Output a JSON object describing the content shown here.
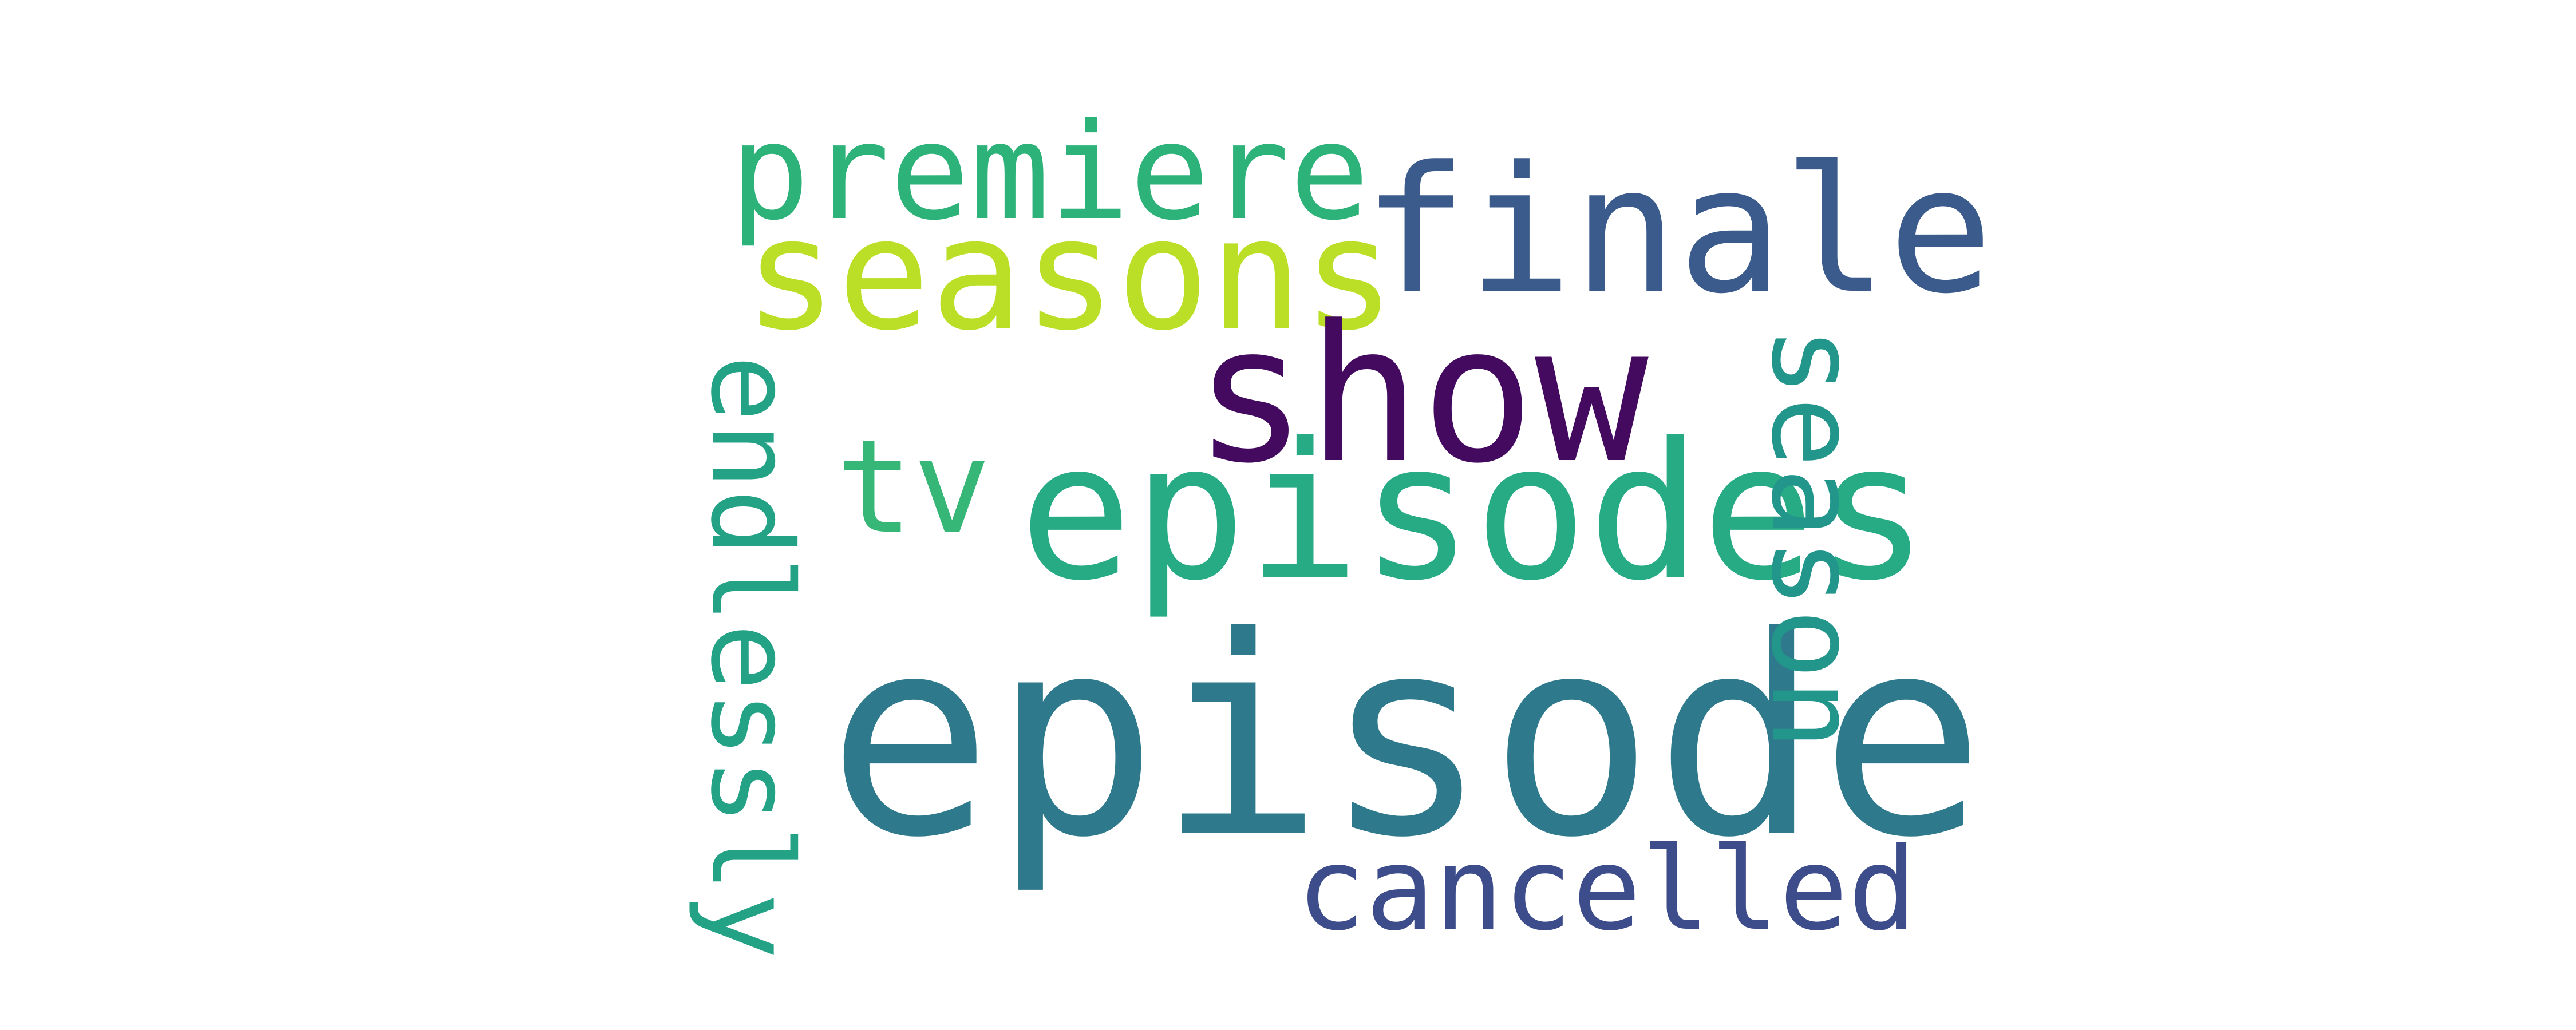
{
  "words": {
    "episode": {
      "text": "episode",
      "color": "#2e7a8c"
    },
    "episodes": {
      "text": "episodes",
      "color": "#27ab85"
    },
    "show": {
      "text": "show",
      "color": "#440a60"
    },
    "finale": {
      "text": "finale",
      "color": "#3b5b8d"
    },
    "seasons": {
      "text": "seasons",
      "color": "#bbdf27"
    },
    "premiere": {
      "text": "premiere",
      "color": "#2db37a"
    },
    "tv": {
      "text": "tv",
      "color": "#36b677"
    },
    "cancelled": {
      "text": "cancelled",
      "color": "#3d4c8a"
    },
    "season": {
      "text": "season",
      "color": "#23968b"
    },
    "endlessly": {
      "text": "endlessly",
      "color": "#23a286"
    }
  }
}
